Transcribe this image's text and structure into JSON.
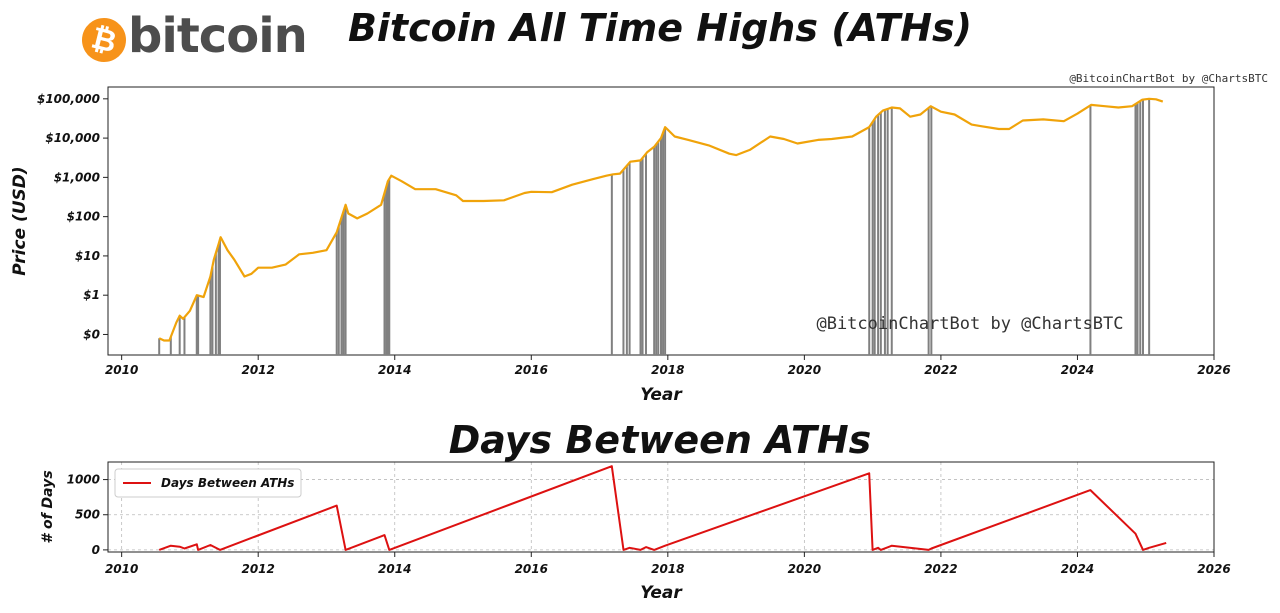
{
  "logo": {
    "coin_symbol": "₿",
    "text": "bitcoin",
    "coin_color": "#f7931a",
    "text_color": "#4d4d4d"
  },
  "titles": {
    "main": "Bitcoin All Time Highs (ATHs)",
    "sub": "Days Between ATHs"
  },
  "credit_top": "@BitcoinChartBot by @ChartsBTC",
  "chart_data": [
    {
      "type": "line",
      "title": "Bitcoin All Time Highs (ATHs)",
      "xlabel": "Year",
      "ylabel": "Price (USD)",
      "yscale": "log",
      "xlim": [
        2009.8,
        2026.0
      ],
      "ylim": [
        0.03,
        200000
      ],
      "x_ticks": [
        2010,
        2012,
        2014,
        2016,
        2018,
        2020,
        2022,
        2024,
        2026
      ],
      "y_ticks": [
        {
          "value": 0.1,
          "label": "$0"
        },
        {
          "value": 1,
          "label": "$1"
        },
        {
          "value": 10,
          "label": "$10"
        },
        {
          "value": 100,
          "label": "$100"
        },
        {
          "value": 1000,
          "label": "$1,000"
        },
        {
          "value": 10000,
          "label": "$10,000"
        },
        {
          "value": 100000,
          "label": "$100,000"
        }
      ],
      "grid": false,
      "line_color": "#f0a30a",
      "ath_line_color": "#808080",
      "watermark": "@BitcoinChartBot by @ChartsBTC",
      "series": [
        {
          "x": [
            2010.55,
            2010.62,
            2010.7,
            2010.8,
            2010.85,
            2010.9,
            2011.0,
            2011.1,
            2011.2,
            2011.3,
            2011.35,
            2011.42,
            2011.45,
            2011.55,
            2011.65,
            2011.8,
            2011.9,
            2012.0,
            2012.2,
            2012.4,
            2012.6,
            2012.8,
            2013.0,
            2013.15,
            2013.28,
            2013.32,
            2013.45,
            2013.6,
            2013.8,
            2013.9,
            2013.95,
            2014.1,
            2014.3,
            2014.6,
            2014.9,
            2015.0,
            2015.3,
            2015.6,
            2015.9,
            2016.0,
            2016.3,
            2016.6,
            2016.9,
            2017.0,
            2017.1,
            2017.2,
            2017.3,
            2017.45,
            2017.6,
            2017.7,
            2017.8,
            2017.9,
            2017.96,
            2018.1,
            2018.3,
            2018.6,
            2018.9,
            2019.0,
            2019.2,
            2019.5,
            2019.7,
            2019.9,
            2020.2,
            2020.4,
            2020.7,
            2020.95,
            2021.05,
            2021.15,
            2021.28,
            2021.4,
            2021.55,
            2021.7,
            2021.85,
            2022.0,
            2022.2,
            2022.45,
            2022.6,
            2022.85,
            2023.0,
            2023.2,
            2023.5,
            2023.8,
            2024.0,
            2024.2,
            2024.4,
            2024.6,
            2024.8,
            2024.95,
            2025.05,
            2025.15,
            2025.25
          ],
          "y": [
            0.08,
            0.07,
            0.07,
            0.2,
            0.3,
            0.25,
            0.4,
            1.0,
            0.9,
            3.0,
            8.0,
            20.0,
            30.0,
            14.0,
            8.0,
            3.0,
            3.5,
            5.0,
            5.0,
            6.0,
            11.0,
            12.0,
            14.0,
            40.0,
            200.0,
            120.0,
            90.0,
            120.0,
            200.0,
            800.0,
            1100.0,
            800.0,
            500.0,
            500.0,
            350.0,
            250.0,
            250.0,
            260.0,
            400.0,
            430.0,
            420.0,
            650.0,
            900.0,
            1000.0,
            1100.0,
            1200.0,
            1250.0,
            2500.0,
            2700.0,
            4400.0,
            6000.0,
            10000.0,
            19000.0,
            11000.0,
            9000.0,
            6500.0,
            4000.0,
            3700.0,
            5000.0,
            11000.0,
            9500.0,
            7300.0,
            9000.0,
            9500.0,
            11000.0,
            19000.0,
            35000.0,
            50000.0,
            60000.0,
            57000.0,
            35000.0,
            40000.0,
            65000.0,
            47000.0,
            40000.0,
            22000.0,
            20000.0,
            17000.0,
            17000.0,
            28000.0,
            30000.0,
            27000.0,
            42000.0,
            70000.0,
            65000.0,
            60000.0,
            65000.0,
            95000.0,
            100000.0,
            97000.0,
            85000.0
          ]
        }
      ],
      "ath_dates": [
        2010.55,
        2010.72,
        2010.85,
        2010.92,
        2011.1,
        2011.12,
        2011.3,
        2011.33,
        2011.38,
        2011.42,
        2011.44,
        2013.15,
        2013.18,
        2013.22,
        2013.25,
        2013.28,
        2013.85,
        2013.88,
        2013.9,
        2013.92,
        2017.18,
        2017.35,
        2017.4,
        2017.44,
        2017.6,
        2017.63,
        2017.68,
        2017.8,
        2017.83,
        2017.86,
        2017.9,
        2017.93,
        2017.96,
        2020.95,
        2021.0,
        2021.03,
        2021.08,
        2021.12,
        2021.18,
        2021.22,
        2021.28,
        2021.82,
        2021.86,
        2024.19,
        2024.85,
        2024.88,
        2024.92,
        2024.96,
        2025.05
      ]
    },
    {
      "type": "line",
      "title": "Days Between ATHs",
      "xlabel": "Year",
      "ylabel": "# of Days",
      "xlim": [
        2009.8,
        2026.0
      ],
      "ylim": [
        -30,
        1250
      ],
      "x_ticks": [
        2010,
        2012,
        2014,
        2016,
        2018,
        2020,
        2022,
        2024,
        2026
      ],
      "y_ticks": [
        0,
        500,
        1000
      ],
      "grid": true,
      "legend_position": "top-left",
      "line_color": "#dd1111",
      "series": [
        {
          "name": "Days Between ATHs",
          "x": [
            2010.55,
            2010.72,
            2010.85,
            2010.92,
            2011.1,
            2011.12,
            2011.3,
            2011.44,
            2013.15,
            2013.28,
            2013.85,
            2013.92,
            2017.18,
            2017.35,
            2017.44,
            2017.6,
            2017.68,
            2017.8,
            2017.96,
            2020.95,
            2021.0,
            2021.08,
            2021.12,
            2021.28,
            2021.82,
            2021.86,
            2024.19,
            2024.85,
            2024.96,
            2025.05,
            2025.3
          ],
          "y": [
            0,
            60,
            45,
            20,
            80,
            0,
            70,
            0,
            630,
            0,
            210,
            0,
            1190,
            0,
            30,
            0,
            40,
            0,
            60,
            1090,
            0,
            30,
            0,
            60,
            0,
            20,
            850,
            230,
            0,
            30,
            100
          ]
        }
      ]
    }
  ]
}
